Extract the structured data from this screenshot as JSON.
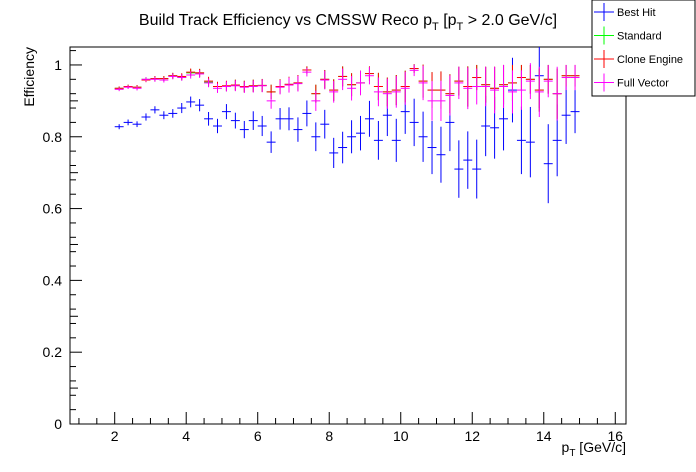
{
  "chart_data": {
    "type": "scatter",
    "title_main": "Build Track Efficiency vs CMSSW Reco p",
    "title_sub1": "T",
    "title_mid": " [p",
    "title_sub2": "T",
    "title_end": " > 2.0 GeV/c]",
    "xlabel_main": "p",
    "xlabel_sub": "T",
    "xlabel_end": " [GeV/c]",
    "ylabel": "Efficiency",
    "xlim": [
      0.75,
      16.3
    ],
    "ylim": [
      0,
      1.05
    ],
    "x_ticks": [
      "2",
      "4",
      "6",
      "8",
      "10",
      "12",
      "14",
      "16"
    ],
    "y_ticks": [
      "0",
      "0.2",
      "0.4",
      "0.6",
      "0.8",
      "1"
    ],
    "x_tick_values": [
      2,
      4,
      6,
      8,
      10,
      12,
      14,
      16
    ],
    "y_tick_values": [
      0,
      0.2,
      0.4,
      0.6,
      0.8,
      1.0
    ],
    "bin_half_width": 0.125,
    "legend_position": "top-right",
    "grid": false,
    "series": [
      {
        "name": "Best Hit",
        "color": "#0000ff",
        "x": [
          2.125,
          2.375,
          2.625,
          2.875,
          3.125,
          3.375,
          3.625,
          3.875,
          4.125,
          4.375,
          4.625,
          4.875,
          5.125,
          5.375,
          5.625,
          5.875,
          6.125,
          6.375,
          6.625,
          6.875,
          7.125,
          7.375,
          7.625,
          7.875,
          8.125,
          8.375,
          8.625,
          8.875,
          9.125,
          9.375,
          9.625,
          9.875,
          10.125,
          10.375,
          10.625,
          10.875,
          11.125,
          11.375,
          11.625,
          11.875,
          12.125,
          12.375,
          12.625,
          12.875,
          13.125,
          13.375,
          13.625,
          13.875,
          14.125,
          14.375,
          14.625,
          14.875
        ],
        "y": [
          0.828,
          0.84,
          0.835,
          0.855,
          0.875,
          0.86,
          0.865,
          0.88,
          0.897,
          0.888,
          0.85,
          0.83,
          0.87,
          0.845,
          0.82,
          0.845,
          0.83,
          0.785,
          0.85,
          0.85,
          0.82,
          0.865,
          0.8,
          0.835,
          0.755,
          0.77,
          0.8,
          0.81,
          0.85,
          0.79,
          0.86,
          0.79,
          0.87,
          0.84,
          0.8,
          0.77,
          0.75,
          0.84,
          0.71,
          0.735,
          0.71,
          0.83,
          0.825,
          0.85,
          0.93,
          0.79,
          0.785,
          0.97,
          0.725,
          0.79,
          0.86,
          0.87
        ],
        "err": [
          0.007,
          0.008,
          0.008,
          0.01,
          0.01,
          0.011,
          0.012,
          0.014,
          0.015,
          0.017,
          0.019,
          0.02,
          0.021,
          0.022,
          0.024,
          0.026,
          0.028,
          0.03,
          0.03,
          0.032,
          0.034,
          0.036,
          0.04,
          0.04,
          0.042,
          0.044,
          0.046,
          0.048,
          0.05,
          0.054,
          0.058,
          0.06,
          0.062,
          0.066,
          0.07,
          0.074,
          0.078,
          0.08,
          0.08,
          0.08,
          0.082,
          0.084,
          0.086,
          0.088,
          0.09,
          0.094,
          0.098,
          0.09,
          0.11,
          0.1,
          0.08,
          0.06
        ]
      },
      {
        "name": "Standard",
        "color": "#00ff00",
        "x": [
          2.125,
          2.375,
          2.625,
          2.875,
          3.125,
          3.375,
          3.625,
          3.875,
          4.125,
          4.375,
          4.625,
          4.875,
          5.125,
          5.375,
          5.625,
          5.875,
          6.125,
          6.375,
          6.625,
          6.875,
          7.125,
          7.375,
          7.625,
          7.875,
          8.125,
          8.375,
          8.625,
          8.875,
          9.125,
          9.375,
          9.625,
          9.875,
          10.125,
          10.375,
          10.625,
          10.875,
          11.125,
          11.375,
          11.625,
          11.875,
          12.125,
          12.375,
          12.625,
          12.875,
          13.125,
          13.375,
          13.625,
          13.875,
          14.125,
          14.375,
          14.625,
          14.875
        ],
        "y": [
          0.935,
          0.94,
          0.938,
          0.96,
          0.962,
          0.962,
          0.97,
          0.966,
          0.978,
          0.978,
          0.952,
          0.94,
          0.94,
          0.944,
          0.94,
          0.942,
          0.943,
          0.925,
          0.94,
          0.946,
          0.95,
          0.986,
          0.92,
          0.96,
          0.93,
          0.968,
          0.945,
          0.95,
          0.976,
          0.94,
          0.925,
          0.93,
          0.94,
          0.99,
          0.955,
          0.93,
          0.93,
          0.92,
          0.955,
          0.94,
          0.965,
          0.945,
          0.935,
          0.945,
          0.95,
          0.965,
          0.96,
          0.93,
          0.96,
          0.92,
          0.97,
          0.97
        ],
        "err": [
          0.005,
          0.005,
          0.006,
          0.006,
          0.007,
          0.007,
          0.008,
          0.009,
          0.01,
          0.011,
          0.012,
          0.013,
          0.014,
          0.015,
          0.016,
          0.017,
          0.018,
          0.02,
          0.02,
          0.021,
          0.022,
          0.01,
          0.025,
          0.026,
          0.03,
          0.028,
          0.032,
          0.034,
          0.02,
          0.038,
          0.04,
          0.042,
          0.044,
          0.012,
          0.046,
          0.05,
          0.052,
          0.054,
          0.04,
          0.056,
          0.035,
          0.05,
          0.06,
          0.055,
          0.05,
          0.035,
          0.04,
          0.06,
          0.04,
          0.07,
          0.03,
          0.03
        ]
      },
      {
        "name": "Clone Engine",
        "color": "#ff0000",
        "x": [
          2.125,
          2.375,
          2.625,
          2.875,
          3.125,
          3.375,
          3.625,
          3.875,
          4.125,
          4.375,
          4.625,
          4.875,
          5.125,
          5.375,
          5.625,
          5.875,
          6.125,
          6.375,
          6.625,
          6.875,
          7.125,
          7.375,
          7.625,
          7.875,
          8.125,
          8.375,
          8.625,
          8.875,
          9.125,
          9.375,
          9.625,
          9.875,
          10.125,
          10.375,
          10.625,
          10.875,
          11.125,
          11.375,
          11.625,
          11.875,
          12.125,
          12.375,
          12.625,
          12.875,
          13.125,
          13.375,
          13.625,
          13.875,
          14.125,
          14.375,
          14.625,
          14.875
        ],
        "y": [
          0.935,
          0.94,
          0.938,
          0.958,
          0.962,
          0.962,
          0.97,
          0.968,
          0.98,
          0.978,
          0.955,
          0.94,
          0.942,
          0.944,
          0.94,
          0.942,
          0.943,
          0.925,
          0.94,
          0.946,
          0.95,
          0.986,
          0.92,
          0.96,
          0.93,
          0.968,
          0.945,
          0.95,
          0.976,
          0.94,
          0.925,
          0.93,
          0.94,
          0.99,
          0.955,
          0.93,
          0.93,
          0.92,
          0.955,
          0.94,
          0.965,
          0.945,
          0.935,
          0.945,
          0.95,
          0.965,
          0.96,
          0.93,
          0.96,
          0.92,
          0.97,
          0.97
        ],
        "err": [
          0.005,
          0.005,
          0.006,
          0.006,
          0.007,
          0.007,
          0.008,
          0.009,
          0.01,
          0.011,
          0.012,
          0.013,
          0.014,
          0.015,
          0.016,
          0.017,
          0.018,
          0.02,
          0.02,
          0.021,
          0.022,
          0.01,
          0.025,
          0.026,
          0.03,
          0.028,
          0.032,
          0.034,
          0.02,
          0.038,
          0.04,
          0.042,
          0.044,
          0.012,
          0.046,
          0.05,
          0.052,
          0.054,
          0.04,
          0.056,
          0.035,
          0.05,
          0.06,
          0.055,
          0.05,
          0.035,
          0.04,
          0.06,
          0.04,
          0.07,
          0.03,
          0.03
        ]
      },
      {
        "name": "Full Vector",
        "color": "#ff00ff",
        "x": [
          2.125,
          2.375,
          2.625,
          2.875,
          3.125,
          3.375,
          3.625,
          3.875,
          4.125,
          4.375,
          4.625,
          4.875,
          5.125,
          5.375,
          5.625,
          5.875,
          6.125,
          6.375,
          6.625,
          6.875,
          7.125,
          7.375,
          7.625,
          7.875,
          8.125,
          8.375,
          8.625,
          8.875,
          9.125,
          9.375,
          9.625,
          9.875,
          10.125,
          10.375,
          10.625,
          10.875,
          11.125,
          11.375,
          11.625,
          11.875,
          12.125,
          12.375,
          12.625,
          12.875,
          13.125,
          13.375,
          13.625,
          13.875,
          14.125,
          14.375,
          14.625,
          14.875
        ],
        "y": [
          0.932,
          0.938,
          0.935,
          0.96,
          0.96,
          0.958,
          0.968,
          0.965,
          0.972,
          0.975,
          0.95,
          0.935,
          0.94,
          0.942,
          0.938,
          0.94,
          0.942,
          0.9,
          0.938,
          0.944,
          0.948,
          0.98,
          0.9,
          0.958,
          0.925,
          0.96,
          0.935,
          0.95,
          0.97,
          0.925,
          0.92,
          0.925,
          0.935,
          0.985,
          0.95,
          0.9,
          0.9,
          0.915,
          0.95,
          0.935,
          0.94,
          0.94,
          0.93,
          0.94,
          0.925,
          0.93,
          0.955,
          0.925,
          0.955,
          0.92,
          0.965,
          0.965
        ],
        "err": [
          0.005,
          0.005,
          0.006,
          0.006,
          0.007,
          0.007,
          0.008,
          0.009,
          0.01,
          0.011,
          0.012,
          0.013,
          0.014,
          0.015,
          0.016,
          0.017,
          0.018,
          0.022,
          0.02,
          0.021,
          0.022,
          0.012,
          0.028,
          0.026,
          0.03,
          0.03,
          0.034,
          0.034,
          0.024,
          0.04,
          0.042,
          0.044,
          0.046,
          0.016,
          0.048,
          0.055,
          0.056,
          0.056,
          0.045,
          0.058,
          0.05,
          0.055,
          0.065,
          0.06,
          0.06,
          0.055,
          0.05,
          0.07,
          0.045,
          0.075,
          0.035,
          0.035
        ]
      }
    ]
  }
}
